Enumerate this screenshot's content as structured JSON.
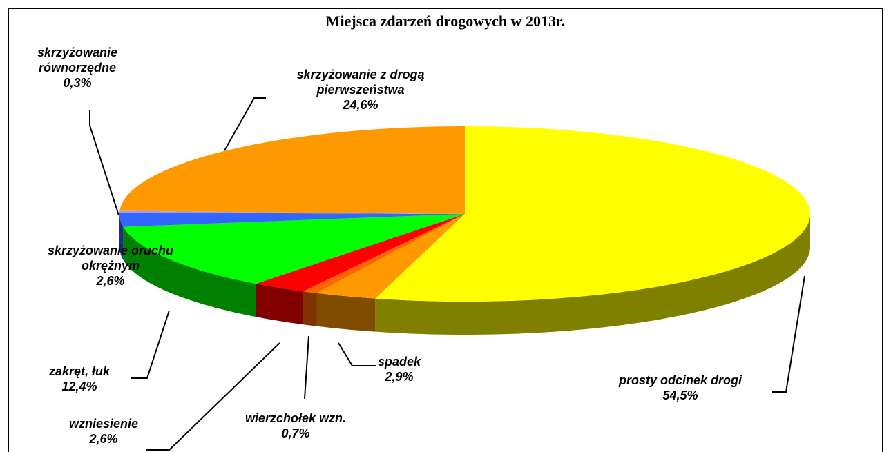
{
  "chart_data": {
    "type": "pie3d",
    "title": "Miejsca zdarzeń drogowych w 2013r.",
    "categories": [
      "prosty odcinek drogi",
      "spadek",
      "wierzchołek wzn.",
      "wzniesienie",
      "zakręt, łuk",
      "skrzyżowanie oruchu okrężnym",
      "skrzyżowanie równorzędne",
      "skrzyżowanie z drogą pierwszeństwa"
    ],
    "values": [
      54.5,
      2.9,
      0.7,
      2.6,
      12.4,
      2.6,
      0.3,
      24.6
    ],
    "value_labels": [
      "54,5%",
      "2,9%",
      "0,7%",
      "2,6%",
      "12,4%",
      "2,6%",
      "0,3%",
      "24,6%"
    ],
    "colors": [
      "#ffff00",
      "#ff9900",
      "#ff6600",
      "#ff0000",
      "#00ff00",
      "#3366ff",
      "#9999ff",
      "#ff9900"
    ]
  }
}
